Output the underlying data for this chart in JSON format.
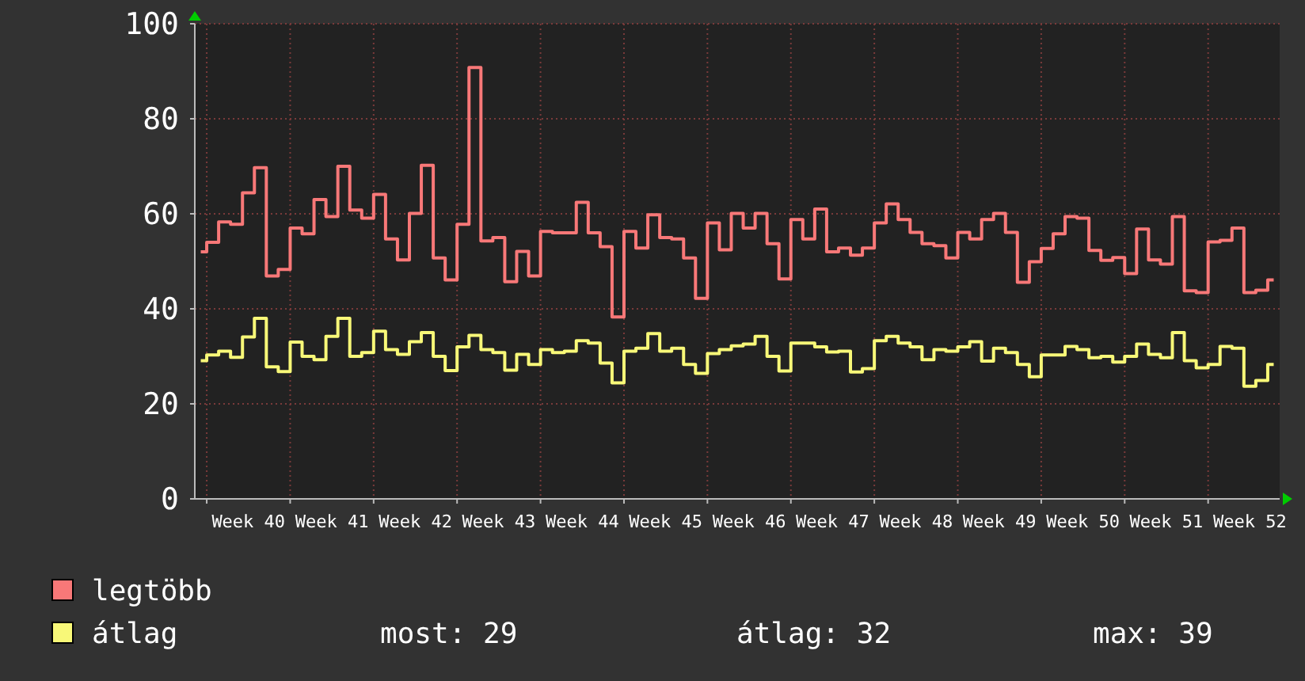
{
  "chart_data": {
    "type": "step",
    "categories": [
      null,
      null,
      null,
      null,
      "Week 40",
      null,
      null,
      null,
      null,
      null,
      null,
      "Week 41",
      null,
      null,
      null,
      null,
      null,
      null,
      "Week 42",
      null,
      null,
      null,
      null,
      null,
      null,
      "Week 43",
      null,
      null,
      null,
      null,
      null,
      null,
      "Week 44",
      null,
      null,
      null,
      null,
      null,
      null,
      "Week 45",
      null,
      null,
      null,
      null,
      null,
      null,
      "Week 46",
      null,
      null,
      null,
      null,
      null,
      null,
      "Week 47",
      null,
      null,
      null,
      null,
      null,
      null,
      "Week 48",
      null,
      null,
      null,
      null,
      null,
      null,
      "Week 49",
      null,
      null,
      null,
      null,
      null,
      null,
      "Week 50",
      null,
      null,
      null,
      null,
      null,
      null,
      "Week 51",
      null,
      null,
      null,
      null,
      null,
      null,
      "Week 52",
      null,
      null
    ],
    "series": [
      {
        "name": "legtöbb",
        "color": "#f87878",
        "values": [
          52,
          54,
          58.3,
          57.8,
          64.4,
          69.7,
          46.9,
          48.3,
          57,
          55.8,
          63,
          59.4,
          70,
          60.8,
          59.1,
          64.1,
          54.7,
          50.3,
          60.1,
          70.2,
          50.7,
          46.1,
          57.8,
          90.8,
          54.3,
          55,
          45.7,
          52.1,
          46.9,
          56.3,
          56,
          56,
          62.4,
          56,
          53.1,
          38.3,
          56.3,
          52.8,
          59.8,
          55,
          54.7,
          50.7,
          42.2,
          58.1,
          52.4,
          60.1,
          57,
          60.1,
          53.7,
          46.3,
          58.8,
          54.7,
          61,
          52,
          52.8,
          51.3,
          52.8,
          58.1,
          62.1,
          58.8,
          56.1,
          53.7,
          53.3,
          50.7,
          56.1,
          54.7,
          58.8,
          60.1,
          56.1,
          45.6,
          49.9,
          52.7,
          55.8,
          59.4,
          59.1,
          52.3,
          50.2,
          50.8,
          47.4,
          56.8,
          50.3,
          49.4,
          59.4,
          43.8,
          43.4,
          54.1,
          54.4,
          57,
          43.4,
          43.9,
          46.1
        ]
      },
      {
        "name": "átlag",
        "color": "#f8f878",
        "values": [
          29.1,
          30.3,
          31.1,
          29.8,
          34.1,
          38,
          27.8,
          26.8,
          33,
          30,
          29.3,
          34.2,
          38,
          30,
          30.8,
          35.3,
          31.4,
          30.4,
          33.1,
          35,
          30,
          27,
          32,
          34.4,
          31.4,
          30.8,
          27.1,
          30.4,
          28.3,
          31.4,
          30.8,
          31.1,
          33.3,
          32.8,
          28.6,
          24.4,
          31.1,
          31.7,
          34.8,
          31.1,
          31.7,
          28.3,
          26.4,
          30.6,
          31.4,
          32.2,
          32.6,
          34.2,
          30,
          26.9,
          32.8,
          32.8,
          32,
          30.9,
          31.1,
          26.7,
          27.4,
          33.3,
          34.2,
          32.8,
          32,
          29.3,
          31.4,
          31.1,
          32,
          33.1,
          29,
          31.7,
          30.8,
          28.3,
          25.7,
          30.3,
          30.3,
          32.1,
          31.4,
          29.7,
          30,
          28.8,
          30,
          32.6,
          30.4,
          29.7,
          35,
          29.1,
          27.6,
          28.3,
          32.1,
          31.7,
          23.7,
          24.9,
          28.3
        ]
      }
    ],
    "ylim": [
      0,
      100
    ],
    "yticks": [
      0,
      20,
      40,
      60,
      80,
      100
    ],
    "grid": true,
    "legend": "bottom left",
    "line_style": "solid",
    "annotations": [
      "most: 29",
      "átlag: 32",
      "max: 39"
    ]
  }
}
